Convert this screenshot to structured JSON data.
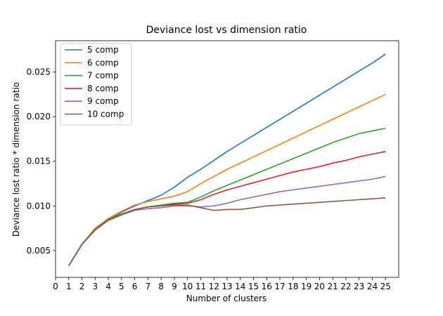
{
  "chart_data": {
    "type": "line",
    "title": "Deviance lost vs dimension ratio",
    "xlabel": "Number of clusters",
    "ylabel": "Deviance lost ratio * dimension ratio",
    "xlim": [
      0,
      26
    ],
    "ylim": [
      0.002,
      0.0285
    ],
    "xticks": [
      0,
      1,
      2,
      3,
      4,
      5,
      6,
      7,
      8,
      9,
      10,
      11,
      12,
      13,
      14,
      15,
      16,
      17,
      18,
      19,
      20,
      21,
      22,
      23,
      24,
      25
    ],
    "yticks": [
      0.005,
      0.01,
      0.015,
      0.02,
      0.025
    ],
    "ytick_labels": [
      "0.005",
      "0.010",
      "0.015",
      "0.020",
      "0.025"
    ],
    "grid": false,
    "legend_position": "top-left",
    "x": [
      1,
      2,
      3,
      4,
      5,
      6,
      7,
      8,
      9,
      10,
      11,
      12,
      13,
      14,
      15,
      16,
      17,
      18,
      19,
      20,
      21,
      22,
      23,
      24,
      25
    ],
    "series": [
      {
        "name": "5 comp",
        "color": "#1f77b4",
        "values": [
          0.0033,
          0.0057,
          0.0074,
          0.0085,
          0.0093,
          0.01,
          0.0106,
          0.0112,
          0.0121,
          0.0132,
          0.0141,
          0.0151,
          0.0161,
          0.017,
          0.0179,
          0.0188,
          0.0197,
          0.0206,
          0.0215,
          0.0224,
          0.0233,
          0.0242,
          0.0251,
          0.026,
          0.027
        ]
      },
      {
        "name": "6 comp",
        "color": "#ff7f0e",
        "values": [
          0.0033,
          0.0057,
          0.0075,
          0.0086,
          0.0094,
          0.0101,
          0.0105,
          0.0108,
          0.0111,
          0.0116,
          0.0125,
          0.0133,
          0.0141,
          0.0148,
          0.0155,
          0.0162,
          0.0169,
          0.0176,
          0.0183,
          0.019,
          0.0197,
          0.0204,
          0.0211,
          0.0218,
          0.0225
        ]
      },
      {
        "name": "7 comp",
        "color": "#2ca02c",
        "values": [
          0.0033,
          0.0057,
          0.0074,
          0.0085,
          0.0091,
          0.0096,
          0.0099,
          0.0101,
          0.0103,
          0.0104,
          0.011,
          0.0117,
          0.0123,
          0.0129,
          0.0135,
          0.0141,
          0.0147,
          0.0153,
          0.0159,
          0.0165,
          0.0171,
          0.0176,
          0.0181,
          0.0184,
          0.0187
        ]
      },
      {
        "name": "8 comp",
        "color": "#d62728",
        "values": [
          0.0033,
          0.0057,
          0.0073,
          0.0084,
          0.009,
          0.0096,
          0.0099,
          0.01,
          0.0102,
          0.0103,
          0.0107,
          0.0113,
          0.0118,
          0.0122,
          0.0126,
          0.013,
          0.0134,
          0.0138,
          0.0141,
          0.0144,
          0.0148,
          0.0151,
          0.0155,
          0.0158,
          0.0161
        ]
      },
      {
        "name": "9 comp",
        "color": "#9467bd",
        "values": [
          0.0033,
          0.0057,
          0.0073,
          0.0084,
          0.009,
          0.0095,
          0.0097,
          0.0098,
          0.01,
          0.01,
          0.0099,
          0.01,
          0.0103,
          0.0107,
          0.011,
          0.0113,
          0.0116,
          0.0118,
          0.012,
          0.0122,
          0.0124,
          0.0126,
          0.0128,
          0.013,
          0.0133
        ]
      },
      {
        "name": "10 comp",
        "color": "#8c564b",
        "values": [
          0.0033,
          0.0057,
          0.0073,
          0.0084,
          0.009,
          0.0096,
          0.0099,
          0.01,
          0.0101,
          0.0101,
          0.0098,
          0.0095,
          0.0096,
          0.0096,
          0.0098,
          0.01,
          0.0101,
          0.0102,
          0.0103,
          0.0104,
          0.0105,
          0.0106,
          0.0107,
          0.0108,
          0.0109
        ]
      }
    ]
  }
}
